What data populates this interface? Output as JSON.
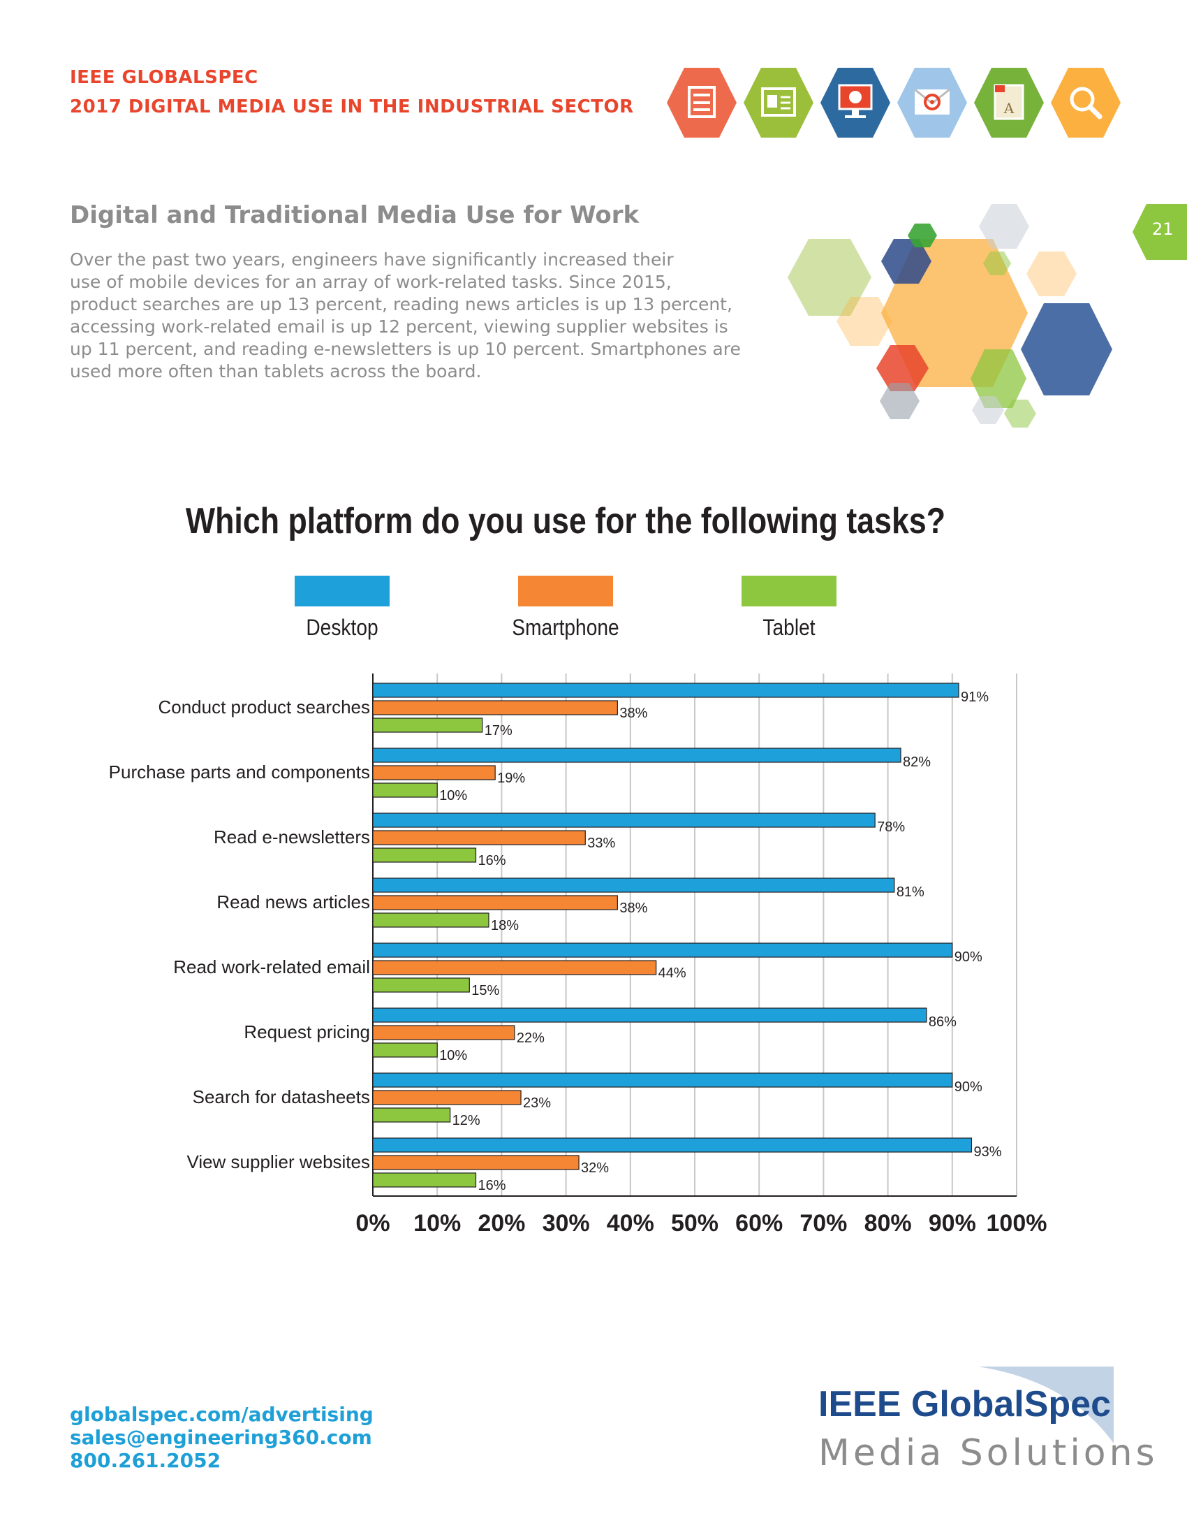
{
  "header": {
    "line1": "IEEE GLOBALSPEC",
    "line2": "2017 DIGITAL MEDIA USE IN THE INDUSTRIAL SECTOR",
    "color": "#e8452c",
    "icons": [
      "newsletter-icon",
      "webpage-icon",
      "monitor-icon",
      "email-icon",
      "book-icon",
      "search-icon"
    ]
  },
  "page_number": "21",
  "section": {
    "title": "Digital and Traditional Media Use for Work",
    "intro_lines": [
      "Over the past two years, engineers have significantly increased their",
      "use of mobile devices for an array of work-related tasks. Since 2015,",
      "product searches are up 13 percent, reading news articles is up 13 percent,",
      "accessing work-related email is up 12 percent, viewing supplier websites is",
      "up 11 percent, and reading e-newsletters is up 10 percent. Smartphones are",
      "used more often than tablets across the board."
    ]
  },
  "chart_data": {
    "type": "bar",
    "orientation": "horizontal",
    "title": "Which platform do you use for the following tasks?",
    "categories": [
      "Conduct product searches",
      "Purchase parts and components",
      "Read e-newsletters",
      "Read news articles",
      "Read work-related email",
      "Request pricing",
      "Search for datasheets",
      "View supplier websites"
    ],
    "series": [
      {
        "name": "Desktop",
        "color": "#1ea0db",
        "values": [
          91,
          82,
          78,
          81,
          90,
          86,
          90,
          93
        ]
      },
      {
        "name": "Smartphone",
        "color": "#f58634",
        "values": [
          38,
          19,
          33,
          38,
          44,
          22,
          23,
          32
        ]
      },
      {
        "name": "Tablet",
        "color": "#8dc63f",
        "values": [
          17,
          10,
          16,
          18,
          15,
          10,
          12,
          16
        ]
      }
    ],
    "xlim": [
      0,
      100
    ],
    "xticks": [
      "0%",
      "10%",
      "20%",
      "30%",
      "40%",
      "50%",
      "60%",
      "70%",
      "80%",
      "90%",
      "100%"
    ],
    "grid": true,
    "legend_position": "top",
    "value_suffix": "%"
  },
  "footer": {
    "website": "globalspec.com/advertising",
    "email": "sales@engineering360.com",
    "phone": "800.261.2052",
    "logo_brand": "IEEE GlobalSpec",
    "logo_sub": "Media Solutions"
  }
}
